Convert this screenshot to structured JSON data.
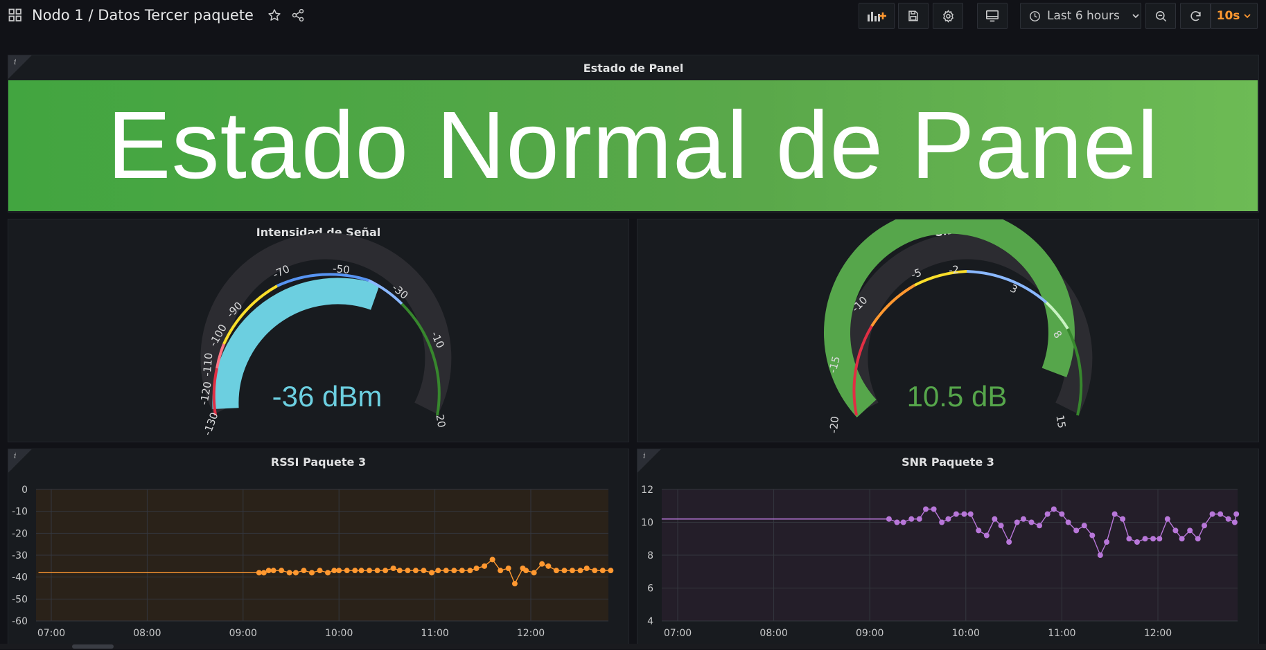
{
  "header": {
    "breadcrumb": "Nodo 1 / Datos Tercer paquete",
    "time_range": "Last 6 hours",
    "refresh": "10s",
    "icons": [
      "apps-icon",
      "star-icon",
      "share-icon",
      "add-panel-icon",
      "save-icon",
      "settings-icon",
      "tv-mode-icon",
      "clock-icon",
      "zoom-out-icon",
      "refresh-icon",
      "chevron-down-icon"
    ]
  },
  "status_panel": {
    "title": "Estado de Panel",
    "message": "Estado Normal de Panel",
    "color": "#56a64b"
  },
  "gauge_rssi": {
    "title": "Intensidad de Señal",
    "display": "-36 dBm",
    "value": -36,
    "min": -130,
    "max": -20,
    "ticks": [
      "-130",
      "-120",
      "-110",
      "-100",
      "-90",
      "-70",
      "-50",
      "-30",
      "-10",
      "20"
    ],
    "color": "#6ccfe0"
  },
  "gauge_snr": {
    "title": "SNR",
    "display": "10.5 dB",
    "value": 10.5,
    "min": -20,
    "max": 15,
    "ticks": [
      "-20",
      "-15",
      "-10",
      "-5",
      "-2",
      "3",
      "8",
      "15"
    ],
    "color": "#56a64b"
  },
  "chart_data": [
    {
      "type": "line",
      "title": "RSSI Paquete 3",
      "x_ticks": [
        "07:00",
        "08:00",
        "09:00",
        "10:00",
        "11:00",
        "12:00"
      ],
      "y_ticks": [
        "0",
        "-10",
        "-20",
        "-30",
        "-40",
        "-50",
        "-60"
      ],
      "ylim": [
        -60,
        0
      ],
      "grid": true,
      "color": "#ff9830",
      "series": [
        {
          "x": [
            "06:52",
            "09:10",
            "09:13",
            "09:16",
            "09:19",
            "09:24",
            "09:29",
            "09:33",
            "09:38",
            "09:43",
            "09:48",
            "09:53",
            "09:57",
            "10:00",
            "10:05",
            "10:10",
            "10:14",
            "10:19",
            "10:24",
            "10:29",
            "10:34",
            "10:38",
            "10:43",
            "10:48",
            "10:53",
            "10:58",
            "11:02",
            "11:07",
            "11:12",
            "11:17",
            "11:22",
            "11:26",
            "11:31",
            "11:36",
            "11:41",
            "11:46",
            "11:50",
            "11:55",
            "11:57",
            "12:02",
            "12:07",
            "12:11",
            "12:16",
            "12:21",
            "12:26",
            "12:31",
            "12:35",
            "12:40",
            "12:45",
            "12:50"
          ],
          "values": [
            -38,
            -38,
            -38,
            -37,
            -37,
            -37,
            -38,
            -38,
            -37,
            -38,
            -37,
            -38,
            -37,
            -37,
            -37,
            -37,
            -37,
            -37,
            -37,
            -37,
            -36,
            -37,
            -37,
            -37,
            -37,
            -38,
            -37,
            -37,
            -37,
            -37,
            -37,
            -36,
            -35,
            -32,
            -37,
            -36,
            -43,
            -36,
            -37,
            -38,
            -34,
            -35,
            -37,
            -37,
            -37,
            -37,
            -36,
            -37,
            -37,
            -37
          ]
        }
      ]
    },
    {
      "type": "line",
      "title": "SNR Paquete 3",
      "x_ticks": [
        "07:00",
        "08:00",
        "09:00",
        "10:00",
        "11:00",
        "12:00"
      ],
      "y_ticks": [
        "12",
        "10",
        "8",
        "6",
        "4"
      ],
      "ylim": [
        4,
        12
      ],
      "grid": true,
      "color": "#b877d9",
      "series": [
        {
          "x": [
            "06:50",
            "09:12",
            "09:17",
            "09:21",
            "09:26",
            "09:31",
            "09:35",
            "09:40",
            "09:45",
            "09:49",
            "09:54",
            "09:59",
            "10:03",
            "10:08",
            "10:13",
            "10:18",
            "10:22",
            "10:27",
            "10:32",
            "10:36",
            "10:41",
            "10:46",
            "10:51",
            "10:55",
            "11:00",
            "11:04",
            "11:09",
            "11:14",
            "11:19",
            "11:24",
            "11:28",
            "11:33",
            "11:38",
            "11:42",
            "11:47",
            "11:52",
            "11:57",
            "12:01",
            "12:06",
            "12:11",
            "12:15",
            "12:20",
            "12:25",
            "12:29",
            "12:34",
            "12:39",
            "12:44",
            "12:48",
            "12:49"
          ],
          "values": [
            10.2,
            10.2,
            10.0,
            10.0,
            10.2,
            10.2,
            10.8,
            10.8,
            10.0,
            10.2,
            10.5,
            10.5,
            10.5,
            9.5,
            9.2,
            10.2,
            9.8,
            8.8,
            10.0,
            10.2,
            10.0,
            9.8,
            10.5,
            10.8,
            10.5,
            10.0,
            9.5,
            9.8,
            9.2,
            8.0,
            8.8,
            10.5,
            10.2,
            9.0,
            8.8,
            9.0,
            9.0,
            9.0,
            10.2,
            9.5,
            9.0,
            9.5,
            9.0,
            9.8,
            10.5,
            10.5,
            10.2,
            10.0,
            10.5
          ]
        }
      ]
    }
  ]
}
